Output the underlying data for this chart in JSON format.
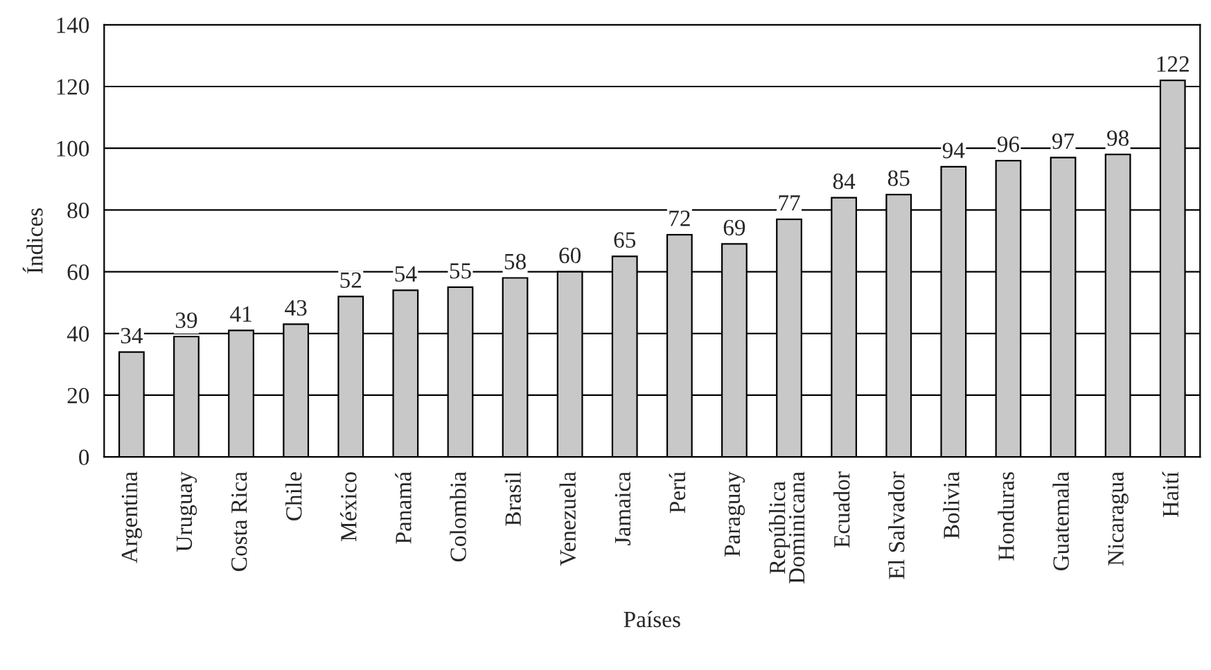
{
  "chart_data": {
    "type": "bar",
    "categories": [
      "Argentina",
      "Uruguay",
      "Costa Rica",
      "Chile",
      "México",
      "Panamá",
      "Colombia",
      "Brasil",
      "Venezuela",
      "Jamaica",
      "Perú",
      "Paraguay",
      "República\nDominicana",
      "Ecuador",
      "El Salvador",
      "Bolivia",
      "Honduras",
      "Guatemala",
      "Nicaragua",
      "Haití"
    ],
    "values": [
      34,
      39,
      41,
      43,
      52,
      54,
      55,
      58,
      60,
      65,
      72,
      69,
      77,
      84,
      85,
      94,
      96,
      97,
      98,
      122
    ],
    "color": "#c8c8c8",
    "xlabel": "Países",
    "ylabel": "Índices",
    "ylim": [
      0,
      140
    ],
    "yticks": [
      0,
      20,
      40,
      60,
      80,
      100,
      120,
      140
    ],
    "grid": "y",
    "data_labels": true
  }
}
